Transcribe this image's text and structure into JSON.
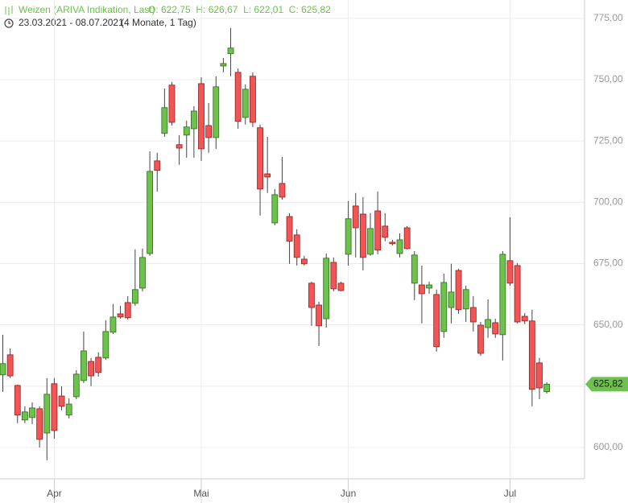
{
  "chart_data": {
    "type": "candlestick",
    "title": "Weizen (ARIVA Indikation, Last)",
    "ohlc_summary": "O: 622,75  H: 626,67  L: 622,01  C: 625,82",
    "date_range": "23.03.2021 - 08.07.2021",
    "period": "(4 Monate, 1 Tag)",
    "last_price_label": "625,82",
    "up_color": "#6cc24a",
    "down_color": "#f25555",
    "grid": true,
    "categories": [
      null,
      null,
      null,
      null,
      null,
      null,
      null,
      "Apr",
      null,
      null,
      null,
      null,
      null,
      null,
      null,
      null,
      null,
      null,
      null,
      null,
      null,
      null,
      null,
      null,
      null,
      null,
      null,
      "Mai",
      null,
      null,
      null,
      null,
      null,
      null,
      null,
      null,
      null,
      null,
      null,
      null,
      null,
      null,
      null,
      null,
      null,
      null,
      null,
      "Jun",
      null,
      null,
      null,
      null,
      null,
      null,
      null,
      null,
      null,
      null,
      null,
      null,
      null,
      null,
      null,
      null,
      null,
      null,
      null,
      null,
      null,
      "Jul",
      null,
      null,
      null,
      null,
      null
    ],
    "open": [
      629.6,
      637.8,
      625.3,
      611.2,
      612.2,
      615.8,
      605.9,
      626.0,
      621.0,
      613.2,
      620.7,
      627.3,
      635.1,
      636.8,
      636.5,
      647.0,
      654.5,
      659.1,
      658.8,
      665.0,
      679.1,
      716.9,
      728.1,
      747.8,
      723.5,
      727.4,
      730.0,
      748.4,
      731.3,
      726.4,
      755.6,
      760.6,
      753.0,
      734.6,
      751.4,
      730.4,
      711.6,
      691.6,
      707.7,
      694.2,
      686.7,
      676.8,
      667.0,
      658.1,
      652.5,
      675.5,
      667.0,
      678.8,
      698.5,
      695.2,
      678.8,
      696.5,
      690.3,
      683.7,
      679.1,
      689.6,
      667.0,
      666.3,
      665.0,
      662.4,
      647.3,
      657.1,
      672.2,
      656.5,
      657.1,
      649.9,
      648.9,
      650.9,
      646.0,
      676.2,
      674.2,
      653.5,
      651.6,
      634.5,
      622.75
    ],
    "high": [
      646.0,
      640.4,
      625.6,
      616.8,
      618.4,
      616.8,
      628.3,
      628.3,
      625.0,
      620.0,
      631.5,
      647.3,
      636.5,
      638.8,
      651.9,
      658.5,
      657.8,
      661.7,
      680.8,
      681.1,
      720.8,
      720.2,
      746.4,
      749.1,
      727.4,
      733.3,
      739.2,
      751.0,
      740.5,
      751.4,
      758.9,
      771.1,
      754.6,
      748.1,
      753.0,
      731.7,
      726.7,
      705.4,
      718.5,
      695.6,
      689.0,
      678.2,
      667.6,
      659.4,
      679.1,
      677.5,
      667.6,
      700.5,
      703.8,
      702.1,
      695.6,
      704.4,
      695.6,
      684.7,
      687.3,
      690.3,
      680.1,
      674.2,
      667.6,
      664.4,
      670.9,
      674.9,
      672.9,
      666.0,
      661.7,
      651.2,
      660.4,
      652.5,
      680.1,
      693.9,
      675.2,
      654.8,
      656.2,
      636.5,
      626.67
    ],
    "low": [
      622.7,
      628.3,
      609.9,
      609.9,
      609.5,
      600.0,
      594.8,
      603.6,
      615.1,
      611.8,
      619.7,
      626.3,
      625.0,
      628.9,
      635.8,
      646.3,
      652.5,
      652.2,
      657.8,
      663.7,
      678.2,
      704.4,
      726.7,
      731.3,
      715.3,
      718.2,
      718.2,
      716.9,
      720.2,
      721.8,
      753.0,
      751.4,
      730.0,
      731.7,
      730.7,
      694.6,
      703.8,
      690.6,
      701.1,
      674.9,
      674.2,
      674.2,
      649.6,
      641.4,
      648.9,
      663.7,
      663.7,
      674.2,
      677.5,
      672.2,
      678.2,
      678.8,
      684.1,
      682.4,
      677.5,
      680.8,
      660.1,
      650.6,
      662.7,
      639.1,
      644.7,
      650.6,
      654.5,
      651.2,
      647.3,
      637.4,
      644.7,
      644.7,
      635.5,
      666.0,
      650.6,
      650.3,
      616.8,
      619.7,
      622.01
    ],
    "close": [
      634.2,
      629.2,
      613.2,
      614.5,
      616.1,
      603.3,
      621.7,
      606.9,
      616.8,
      617.7,
      629.9,
      639.4,
      629.2,
      630.6,
      647.3,
      653.2,
      653.2,
      652.9,
      664.4,
      677.5,
      712.6,
      713.0,
      738.6,
      732.6,
      722.1,
      730.7,
      737.2,
      721.8,
      726.4,
      747.1,
      756.6,
      762.9,
      733.0,
      746.1,
      732.6,
      705.4,
      710.3,
      703.1,
      702.1,
      684.1,
      677.5,
      674.9,
      657.1,
      649.6,
      677.2,
      664.7,
      664.0,
      693.3,
      689.6,
      677.5,
      689.3,
      680.5,
      685.7,
      683.1,
      684.7,
      681.1,
      678.5,
      662.7,
      666.3,
      641.1,
      667.3,
      663.4,
      656.2,
      664.4,
      651.2,
      638.4,
      652.2,
      646.3,
      678.8,
      667.0,
      651.2,
      651.6,
      623.7,
      624.3,
      625.82
    ],
    "ylim": [
      587.2,
      782.5
    ],
    "yticks": [
      {
        "value": 600,
        "label": "600,00"
      },
      {
        "value": 625,
        "label": "625,00"
      },
      {
        "value": 650,
        "label": "650,00"
      },
      {
        "value": 675,
        "label": "675,00"
      },
      {
        "value": 700,
        "label": "700,00"
      },
      {
        "value": 725,
        "label": "725,00"
      },
      {
        "value": 750,
        "label": "750,00"
      },
      {
        "value": 775,
        "label": "775,00"
      }
    ]
  }
}
